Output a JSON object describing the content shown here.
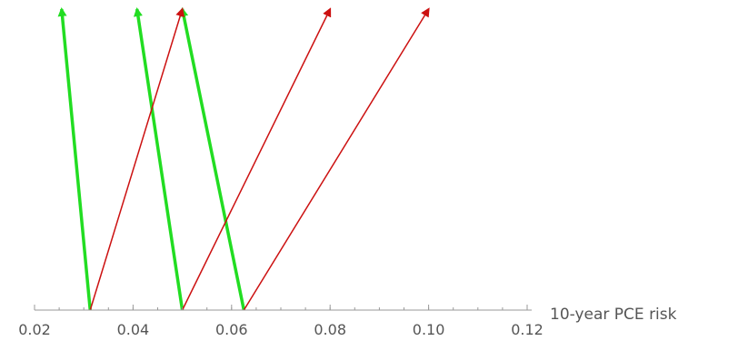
{
  "chart_data": {
    "type": "arrow-plot",
    "xlabel": "10-year PCE risk",
    "x_ticks": [
      {
        "value": 0.02,
        "label": "0.02"
      },
      {
        "value": 0.04,
        "label": "0.04"
      },
      {
        "value": 0.06,
        "label": "0.06"
      },
      {
        "value": 0.08,
        "label": "0.08"
      },
      {
        "value": 0.1,
        "label": "0.10"
      },
      {
        "value": 0.12,
        "label": "0.12"
      }
    ],
    "minor_tick_step": 0.005,
    "xlim": [
      0.02,
      0.12
    ],
    "series": [
      {
        "color": "#22dd22",
        "arrows": [
          {
            "x_start": 0.0313,
            "x_end": 0.0255
          },
          {
            "x_start": 0.05,
            "x_end": 0.0408
          },
          {
            "x_start": 0.0625,
            "x_end": 0.05
          }
        ]
      },
      {
        "color": "#cc1111",
        "arrows": [
          {
            "x_start": 0.0313,
            "x_end": 0.05
          },
          {
            "x_start": 0.05,
            "x_end": 0.08
          },
          {
            "x_start": 0.0625,
            "x_end": 0.1
          }
        ]
      }
    ]
  }
}
